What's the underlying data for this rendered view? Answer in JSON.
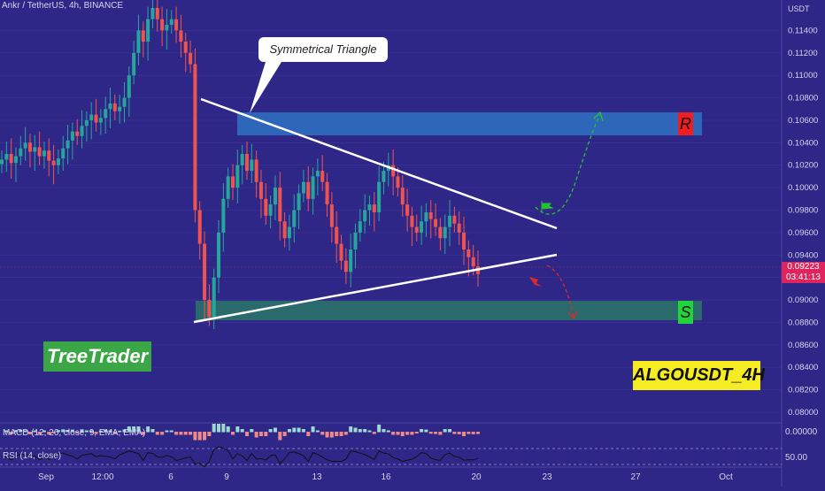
{
  "header": {
    "legend": "Ankr / TetherUS, 4h, BINANCE",
    "currency": "USDT"
  },
  "annotations": {
    "callout": "Symmetrical Triangle",
    "brand": "TreeTrader",
    "symbol_tag": "ALGOUSDT_4H",
    "resistance_badge": "R",
    "support_badge": "S"
  },
  "price_tag": {
    "price": "0.09223",
    "countdown": "03:41:13"
  },
  "indicators": {
    "macd_label": "MACD (12, 26, close, 9, EMA, EMA)",
    "rsi_label": "RSI (14, close)",
    "rsi_level": "50.00",
    "macd_zero": "0.00000"
  },
  "colors": {
    "background": "#2f2787",
    "bull": "#26a69a",
    "bear": "#ef5350",
    "resistance_zone": "#2f6fbf",
    "support_zone": "#2b6e6a",
    "price": "#e0245e"
  },
  "chart_data": {
    "type": "candlestick",
    "ylim": [
      0.08,
      0.116
    ],
    "y_ticks": [
      "0.11400",
      "0.11200",
      "0.11000",
      "0.10800",
      "0.10600",
      "0.10400",
      "0.10200",
      "0.10000",
      "0.09800",
      "0.09600",
      "0.09400",
      "0.09200",
      "0.09000",
      "0.08800",
      "0.08600",
      "0.08400",
      "0.08200",
      "0.08000"
    ],
    "x_ticks": [
      "Sep",
      "12:00",
      "6",
      "9",
      "13",
      "16",
      "20",
      "23",
      "27",
      "Oct"
    ],
    "last_price": 0.09223,
    "resistance_zone": [
      0.1044,
      0.1064
    ],
    "support_zone": [
      0.0875,
      0.0892
    ],
    "triangle": {
      "upper": [
        [
          "0.1076",
          "start"
        ],
        [
          "0.0958",
          "end"
        ]
      ],
      "lower": [
        [
          "0.0871",
          "start"
        ],
        [
          "0.0932",
          "end"
        ]
      ]
    },
    "series": [
      {
        "values": [
          0.1025,
          0.103,
          0.1022,
          0.1028,
          0.1035,
          0.104,
          0.1032,
          0.1036,
          0.1028,
          0.1033,
          0.1024,
          0.102,
          0.1026,
          0.1035,
          0.1042,
          0.105,
          0.1046,
          0.1055,
          0.106,
          0.1065,
          0.1058,
          0.1062,
          0.107,
          0.1075,
          0.1068,
          0.1072,
          0.108,
          0.11,
          0.112,
          0.114,
          0.113,
          0.115,
          0.116,
          0.115,
          0.114,
          0.1145,
          0.115,
          0.114,
          0.113,
          0.112,
          0.111,
          0.098,
          0.095,
          0.09,
          0.0885,
          0.092,
          0.096,
          0.099,
          0.101,
          0.1,
          0.102,
          0.103,
          0.1015,
          0.1025,
          0.1005,
          0.099,
          0.0975,
          0.0985,
          0.1,
          0.097,
          0.0955,
          0.0965,
          0.098,
          0.0995,
          0.1005,
          0.099,
          0.101,
          0.1015,
          0.1005,
          0.0985,
          0.0965,
          0.095,
          0.0935,
          0.0925,
          0.0945,
          0.096,
          0.097,
          0.098,
          0.0985,
          0.0978,
          0.1005,
          0.1015,
          0.102,
          0.101,
          0.1,
          0.0985,
          0.0975,
          0.0965,
          0.096,
          0.097,
          0.0978,
          0.0972,
          0.0965,
          0.0955,
          0.0965,
          0.0975,
          0.0968,
          0.096,
          0.0945,
          0.0938,
          0.093,
          0.0923
        ]
      }
    ]
  }
}
